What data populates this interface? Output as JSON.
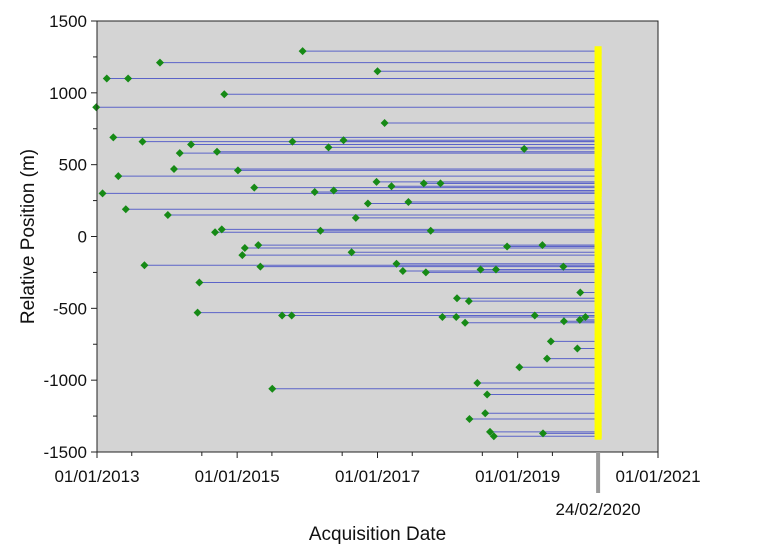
{
  "chart_data": {
    "type": "scatter",
    "title": "",
    "xlabel": "Acquisition Date",
    "ylabel": "Relative Position (m)",
    "xlim": [
      "2013-01-01",
      "2021-01-01"
    ],
    "ylim": [
      -1500,
      1500
    ],
    "x_tick_labels": [
      "01/01/2013",
      "01/01/2015",
      "01/01/2017",
      "01/01/2019",
      "01/01/2021"
    ],
    "y_tick_labels": [
      "1500",
      "1000",
      "500",
      "0",
      "-500",
      "-1000",
      "-1500"
    ],
    "y_ticks": [
      1500,
      1000,
      500,
      0,
      -500,
      -1000,
      -1500
    ],
    "x_ticks": [
      "2013-01-01",
      "2015-01-01",
      "2017-01-01",
      "2019-01-01",
      "2021-01-01"
    ],
    "reference_date": "2020-02-24",
    "reference_label": "24/02/2020",
    "grid": false,
    "colors": {
      "background": "#d4d4d4",
      "baseline": "#5b63c8",
      "point": "#168a16",
      "reference_marker": "#ffff00"
    },
    "points": [
      {
        "x": "2015-12-08",
        "y": 1290
      },
      {
        "x": "2013-02-21",
        "y": 1100
      },
      {
        "x": "2013-06-12",
        "y": 1100
      },
      {
        "x": "2013-11-25",
        "y": 1210
      },
      {
        "x": "2017-01-01",
        "y": 1150
      },
      {
        "x": "2012-12-28",
        "y": 900
      },
      {
        "x": "2014-10-26",
        "y": 990
      },
      {
        "x": "2017-02-07",
        "y": 790
      },
      {
        "x": "2013-03-27",
        "y": 690
      },
      {
        "x": "2013-08-26",
        "y": 660
      },
      {
        "x": "2015-10-16",
        "y": 660
      },
      {
        "x": "2016-07-08",
        "y": 670
      },
      {
        "x": "2016-04-21",
        "y": 620
      },
      {
        "x": "2014-05-06",
        "y": 640
      },
      {
        "x": "2014-03-08",
        "y": 580
      },
      {
        "x": "2014-09-18",
        "y": 590
      },
      {
        "x": "2019-02-04",
        "y": 610
      },
      {
        "x": "2014-02-06",
        "y": 470
      },
      {
        "x": "2015-01-05",
        "y": 460
      },
      {
        "x": "2013-04-22",
        "y": 420
      },
      {
        "x": "2016-12-27",
        "y": 380
      },
      {
        "x": "2017-03-15",
        "y": 350
      },
      {
        "x": "2017-08-30",
        "y": 370
      },
      {
        "x": "2017-11-25",
        "y": 370
      },
      {
        "x": "2015-03-31",
        "y": 340
      },
      {
        "x": "2016-02-09",
        "y": 310
      },
      {
        "x": "2016-05-18",
        "y": 320
      },
      {
        "x": "2013-01-30",
        "y": 300
      },
      {
        "x": "2016-11-12",
        "y": 230
      },
      {
        "x": "2017-06-11",
        "y": 240
      },
      {
        "x": "2013-05-31",
        "y": 190
      },
      {
        "x": "2014-01-05",
        "y": 150
      },
      {
        "x": "2016-09-10",
        "y": 130
      },
      {
        "x": "2014-09-08",
        "y": 30
      },
      {
        "x": "2014-10-13",
        "y": 50
      },
      {
        "x": "2016-03-10",
        "y": 40
      },
      {
        "x": "2017-10-05",
        "y": 40
      },
      {
        "x": "2015-02-10",
        "y": -80
      },
      {
        "x": "2015-04-21",
        "y": -60
      },
      {
        "x": "2018-11-07",
        "y": -70
      },
      {
        "x": "2019-05-10",
        "y": -60
      },
      {
        "x": "2015-01-28",
        "y": -130
      },
      {
        "x": "2016-08-19",
        "y": -110
      },
      {
        "x": "2013-09-05",
        "y": -200
      },
      {
        "x": "2015-05-02",
        "y": -210
      },
      {
        "x": "2017-04-10",
        "y": -190
      },
      {
        "x": "2017-05-13",
        "y": -240
      },
      {
        "x": "2017-09-10",
        "y": -250
      },
      {
        "x": "2018-06-22",
        "y": -230
      },
      {
        "x": "2018-09-10",
        "y": -230
      },
      {
        "x": "2019-08-27",
        "y": -210
      },
      {
        "x": "2014-06-18",
        "y": -320
      },
      {
        "x": "2019-11-23",
        "y": -390
      },
      {
        "x": "2018-02-19",
        "y": -430
      },
      {
        "x": "2018-04-22",
        "y": -450
      },
      {
        "x": "2014-06-09",
        "y": -530
      },
      {
        "x": "2015-08-23",
        "y": -550
      },
      {
        "x": "2015-10-12",
        "y": -550
      },
      {
        "x": "2017-12-05",
        "y": -560
      },
      {
        "x": "2018-02-15",
        "y": -560
      },
      {
        "x": "2018-04-02",
        "y": -600
      },
      {
        "x": "2019-03-31",
        "y": -550
      },
      {
        "x": "2019-08-30",
        "y": -590
      },
      {
        "x": "2019-11-21",
        "y": -580
      },
      {
        "x": "2019-12-20",
        "y": -560
      },
      {
        "x": "2019-11-08",
        "y": -780
      },
      {
        "x": "2019-06-23",
        "y": -730
      },
      {
        "x": "2019-06-03",
        "y": -850
      },
      {
        "x": "2019-01-10",
        "y": -910
      },
      {
        "x": "2015-07-03",
        "y": -1060
      },
      {
        "x": "2018-06-05",
        "y": -1020
      },
      {
        "x": "2018-07-26",
        "y": -1100
      },
      {
        "x": "2018-07-16",
        "y": -1230
      },
      {
        "x": "2018-04-25",
        "y": -1270
      },
      {
        "x": "2018-08-10",
        "y": -1360
      },
      {
        "x": "2019-05-13",
        "y": -1370
      },
      {
        "x": "2018-08-30",
        "y": -1390
      }
    ]
  }
}
